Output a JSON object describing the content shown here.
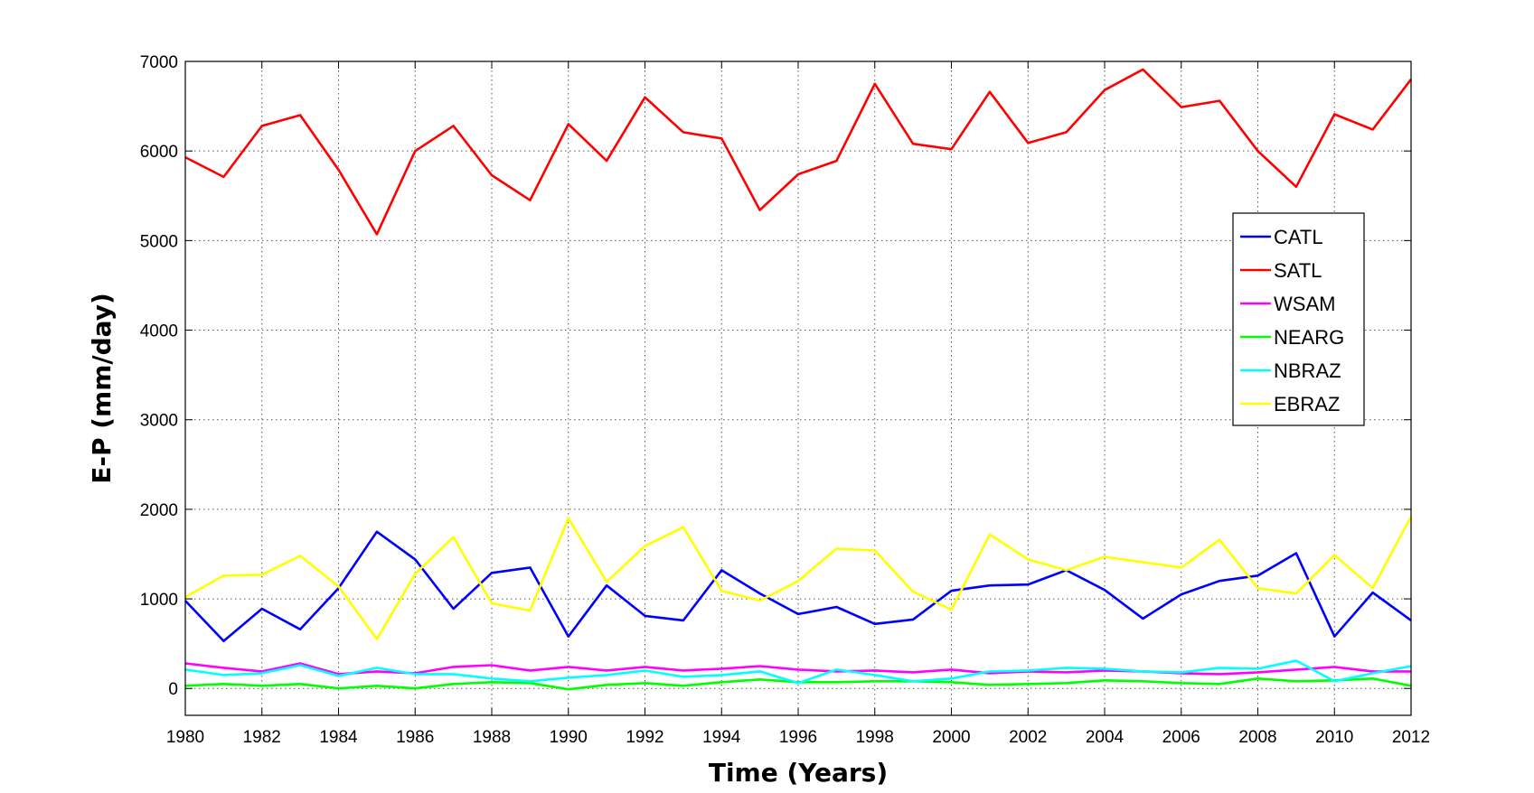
{
  "chart_data": {
    "type": "line",
    "title": "",
    "xlabel": "Time (Years)",
    "ylabel": "E-P (mm/day)",
    "xlim": [
      1980,
      2012
    ],
    "ylim": [
      -300,
      7000
    ],
    "x_ticks": [
      1980,
      1982,
      1984,
      1986,
      1988,
      1990,
      1992,
      1994,
      1996,
      1998,
      2000,
      2002,
      2004,
      2006,
      2008,
      2010,
      2012
    ],
    "y_ticks": [
      0,
      1000,
      2000,
      3000,
      4000,
      5000,
      6000,
      7000
    ],
    "grid": true,
    "legend_position": "right",
    "x": [
      1980,
      1981,
      1982,
      1983,
      1984,
      1985,
      1986,
      1987,
      1988,
      1989,
      1990,
      1991,
      1992,
      1993,
      1994,
      1995,
      1996,
      1997,
      1998,
      1999,
      2000,
      2001,
      2002,
      2003,
      2004,
      2005,
      2006,
      2007,
      2008,
      2009,
      2010,
      2011,
      2012
    ],
    "series": [
      {
        "name": "CATL",
        "color": "#0000ff",
        "values": [
          980,
          530,
          890,
          660,
          1120,
          1750,
          1440,
          890,
          1290,
          1350,
          580,
          1150,
          810,
          760,
          1320,
          1060,
          830,
          910,
          720,
          770,
          1090,
          1150,
          1160,
          1320,
          1100,
          780,
          1050,
          1200,
          1260,
          1510,
          580,
          1070,
          760
        ]
      },
      {
        "name": "SATL",
        "color": "#ff0000",
        "values": [
          5930,
          5710,
          6280,
          6400,
          5790,
          5070,
          6000,
          6280,
          5730,
          5450,
          6300,
          5890,
          6600,
          6210,
          6140,
          5340,
          5740,
          5890,
          6750,
          6080,
          6020,
          6660,
          6090,
          6210,
          6680,
          6910,
          6490,
          6560,
          6000,
          5600,
          6410,
          6240,
          6800
        ]
      },
      {
        "name": "WSAM",
        "color": "#ff00ff",
        "values": [
          280,
          230,
          190,
          280,
          160,
          190,
          170,
          240,
          260,
          200,
          240,
          200,
          240,
          200,
          220,
          250,
          210,
          190,
          200,
          180,
          210,
          170,
          190,
          180,
          200,
          190,
          170,
          160,
          180,
          210,
          240,
          190,
          190
        ]
      },
      {
        "name": "NEARG",
        "color": "#00ff00",
        "values": [
          30,
          50,
          30,
          50,
          0,
          30,
          0,
          50,
          70,
          60,
          -10,
          40,
          60,
          30,
          70,
          100,
          70,
          70,
          80,
          80,
          70,
          40,
          50,
          60,
          90,
          80,
          60,
          50,
          110,
          80,
          90,
          110,
          30
        ]
      },
      {
        "name": "NBRAZ",
        "color": "#00ffff",
        "values": [
          210,
          150,
          170,
          260,
          140,
          230,
          160,
          160,
          110,
          80,
          120,
          150,
          200,
          130,
          150,
          190,
          60,
          210,
          150,
          80,
          110,
          190,
          200,
          230,
          220,
          190,
          180,
          230,
          220,
          310,
          80,
          170,
          250
        ]
      },
      {
        "name": "EBRAZ",
        "color": "#ffff00",
        "values": [
          1020,
          1260,
          1270,
          1480,
          1140,
          550,
          1280,
          1690,
          950,
          870,
          1900,
          1190,
          1590,
          1800,
          1090,
          980,
          1200,
          1560,
          1540,
          1080,
          880,
          1720,
          1440,
          1320,
          1470,
          1410,
          1350,
          1660,
          1120,
          1060,
          1490,
          1120,
          1920
        ]
      }
    ]
  }
}
